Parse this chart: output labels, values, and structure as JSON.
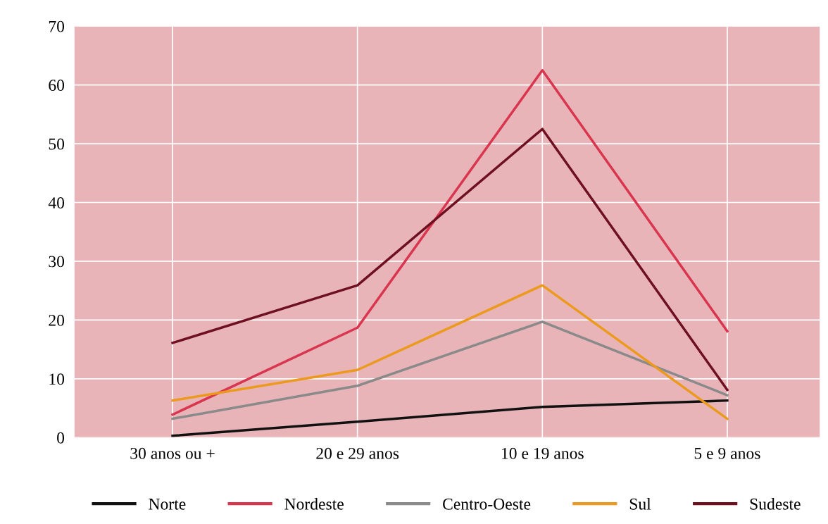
{
  "chart_data": {
    "type": "line",
    "categories": [
      "30 anos ou +",
      "20 e 29 anos",
      "10 e 19 anos",
      "5 e 9 anos"
    ],
    "series": [
      {
        "name": "Norte",
        "color": "#111111",
        "values": [
          0.3,
          2.7,
          5.2,
          6.3
        ]
      },
      {
        "name": "Nordeste",
        "color": "#d9354f",
        "values": [
          3.9,
          18.7,
          62.5,
          18.1
        ]
      },
      {
        "name": "Centro-Oeste",
        "color": "#8a8a8a",
        "values": [
          3.2,
          8.8,
          19.7,
          7.2
        ]
      },
      {
        "name": "Sul",
        "color": "#eb9a1e",
        "values": [
          6.3,
          11.5,
          25.9,
          3.2
        ]
      },
      {
        "name": "Sudeste",
        "color": "#6e1020",
        "values": [
          16.1,
          25.9,
          52.5,
          8.1
        ]
      }
    ],
    "ylim": [
      0,
      70
    ],
    "yticks": [
      0,
      10,
      20,
      30,
      40,
      50,
      60,
      70
    ],
    "grid": true,
    "legend": "bottom",
    "marker": "none",
    "line_style": "solid"
  }
}
